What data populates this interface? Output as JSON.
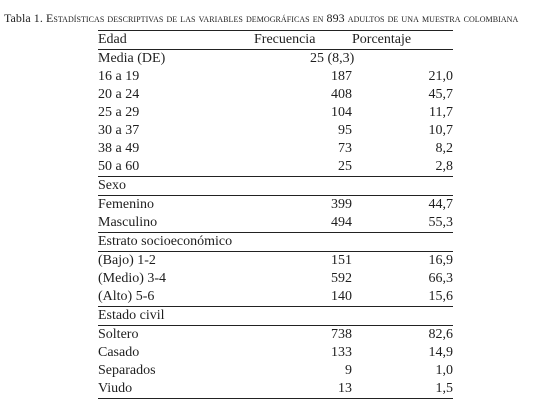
{
  "caption": {
    "prefix": "Tabla 1. ",
    "text_before_number": "Estadísticas descriptivas de las variables demográficas en ",
    "number": "893",
    "text_after_number": " adultos de una muestra colombiana"
  },
  "table": {
    "headers": {
      "label": "Edad",
      "freq": "Frecuencia",
      "pct": "Porcentaje"
    },
    "edad": [
      {
        "label": "Media (DE)",
        "freq": "25 (8,3)",
        "pct": ""
      },
      {
        "label": "16 a 19",
        "freq": "187",
        "pct": "21,0"
      },
      {
        "label": "20 a 24",
        "freq": "408",
        "pct": "45,7"
      },
      {
        "label": "25 a 29",
        "freq": "104",
        "pct": "11,7"
      },
      {
        "label": "30 a 37",
        "freq": "95",
        "pct": "10,7"
      },
      {
        "label": "38 a 49",
        "freq": "73",
        "pct": "8,2"
      },
      {
        "label": "50 a 60",
        "freq": "25",
        "pct": "2,8"
      }
    ],
    "sexo": {
      "title": "Sexo",
      "rows": [
        {
          "label": "Femenino",
          "freq": "399",
          "pct": "44,7"
        },
        {
          "label": "Masculino",
          "freq": "494",
          "pct": "55,3"
        }
      ]
    },
    "estrato": {
      "title": "Estrato socioeconómico",
      "rows": [
        {
          "label": "(Bajo) 1-2",
          "freq": "151",
          "pct": "16,9"
        },
        {
          "label": "(Medio) 3-4",
          "freq": "592",
          "pct": "66,3"
        },
        {
          "label": "(Alto) 5-6",
          "freq": "140",
          "pct": "15,6"
        }
      ]
    },
    "civil": {
      "title": "Estado civil",
      "rows": [
        {
          "label": "Soltero",
          "freq": "738",
          "pct": "82,6"
        },
        {
          "label": "Casado",
          "freq": "133",
          "pct": "14,9"
        },
        {
          "label": "Separados",
          "freq": "9",
          "pct": "1,0"
        },
        {
          "label": "Viudo",
          "freq": "13",
          "pct": "1,5"
        }
      ]
    }
  }
}
